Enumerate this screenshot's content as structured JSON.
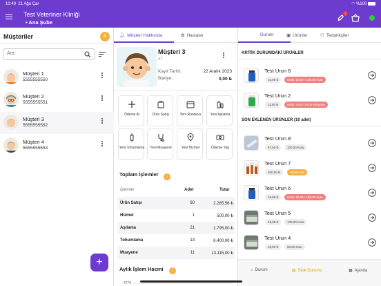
{
  "status": {
    "time": "10:49",
    "date": "21 Ağu Çar",
    "battery": "%100"
  },
  "appbar": {
    "title": "Test Veteriner Kliniği",
    "branch": "• Ana Şube",
    "notif_badge": "1"
  },
  "customers": {
    "title": "Müşteriler",
    "count": "4",
    "search_placeholder": "Ara",
    "items": [
      {
        "name": "Müşteri 1",
        "phone": "5555555550"
      },
      {
        "name": "Müşteri 2",
        "phone": "5555555551"
      },
      {
        "name": "Müşteri 3",
        "phone": "5555555552"
      },
      {
        "name": "Müşteri 4",
        "phone": "5555555553"
      }
    ],
    "fab": "+"
  },
  "middle": {
    "tabs": [
      "Müşteri Hakkında",
      "Hastalar"
    ],
    "name": "Müşteri 3",
    "sub": "#7",
    "reg_label": "Kayıt Tarihi:",
    "reg_value": "22 Aralık 2023",
    "bal_label": "Bakiye:",
    "bal_value": "0,00 ₺",
    "actions": [
      {
        "label": "Ödeme Al"
      },
      {
        "label": "Ürün Satışı"
      },
      {
        "label": "Yeni Randevu"
      },
      {
        "label": "Yeni Aşılama"
      },
      {
        "label": "Yeni Tohumlama"
      },
      {
        "label": "Yeni Muayene"
      },
      {
        "label": "Yeni Hizmet"
      },
      {
        "label": "Ödeme Yap"
      }
    ],
    "totals_title": "Toplam İşlemler",
    "table": {
      "headers": [
        "İşlemler",
        "Adet",
        "Tutar"
      ],
      "rows": [
        [
          "Ürün Satışı",
          "60",
          "2.285,56 ₺"
        ],
        [
          "Hizmet",
          "1",
          "500,00 ₺"
        ],
        [
          "Aşılama",
          "21",
          "1.795,00 ₺"
        ],
        [
          "Tohumlama",
          "13",
          "6.400,00 ₺"
        ],
        [
          "Muayene",
          "11",
          "13.115,00 ₺"
        ]
      ]
    },
    "monthly_title": "Aylık İşlem Hacmi",
    "monthly_axis": "4776"
  },
  "right": {
    "tabs": [
      "Durum",
      "Ürünler",
      "Tedarikçiler"
    ],
    "critical_title": "KRİTİK DURUMDAKİ ÜRÜNLER",
    "critical": [
      {
        "name": "Test Urun 6",
        "price": "15,96 ₺",
        "chip": "Kritik: 62,00 / 100,00 Kutu",
        "chip_color": "red",
        "img": "blue"
      },
      {
        "name": "Test Urun 2",
        "price": "11,00 ₺",
        "chip": "Kritik: 4,00 / 10,00 Kilogram",
        "chip_color": "red",
        "img": "green"
      }
    ],
    "recent_title": "SON EKLENEN ÜRÜNLER (10 adet)",
    "recent": [
      {
        "name": "Test Urun 8",
        "price": "67,50 ₺",
        "chip": "100,00 Kutu",
        "chip_color": "gray",
        "img": "syringe"
      },
      {
        "name": "Test Urun 7",
        "price": "200,00 ₺",
        "chip": "Stokta Yok",
        "chip_color": "org",
        "img": "bottles"
      },
      {
        "name": "Test Urun 6",
        "price": "15,96 ₺",
        "chip": "Kritik: 62,00 / 100,00 Kutu",
        "chip_color": "red",
        "img": "blue"
      },
      {
        "name": "Test Urun 5",
        "price": "45,95 ₺",
        "chip": "130,00 Kutu",
        "chip_color": "gray",
        "img": "box"
      },
      {
        "name": "Test Urun 4",
        "price": "15,00 ₺",
        "chip": "90,00 Kutu",
        "chip_color": "gray",
        "img": "box"
      }
    ],
    "bottom": [
      "Durum",
      "Stok Durumu",
      "Ajanda"
    ]
  }
}
